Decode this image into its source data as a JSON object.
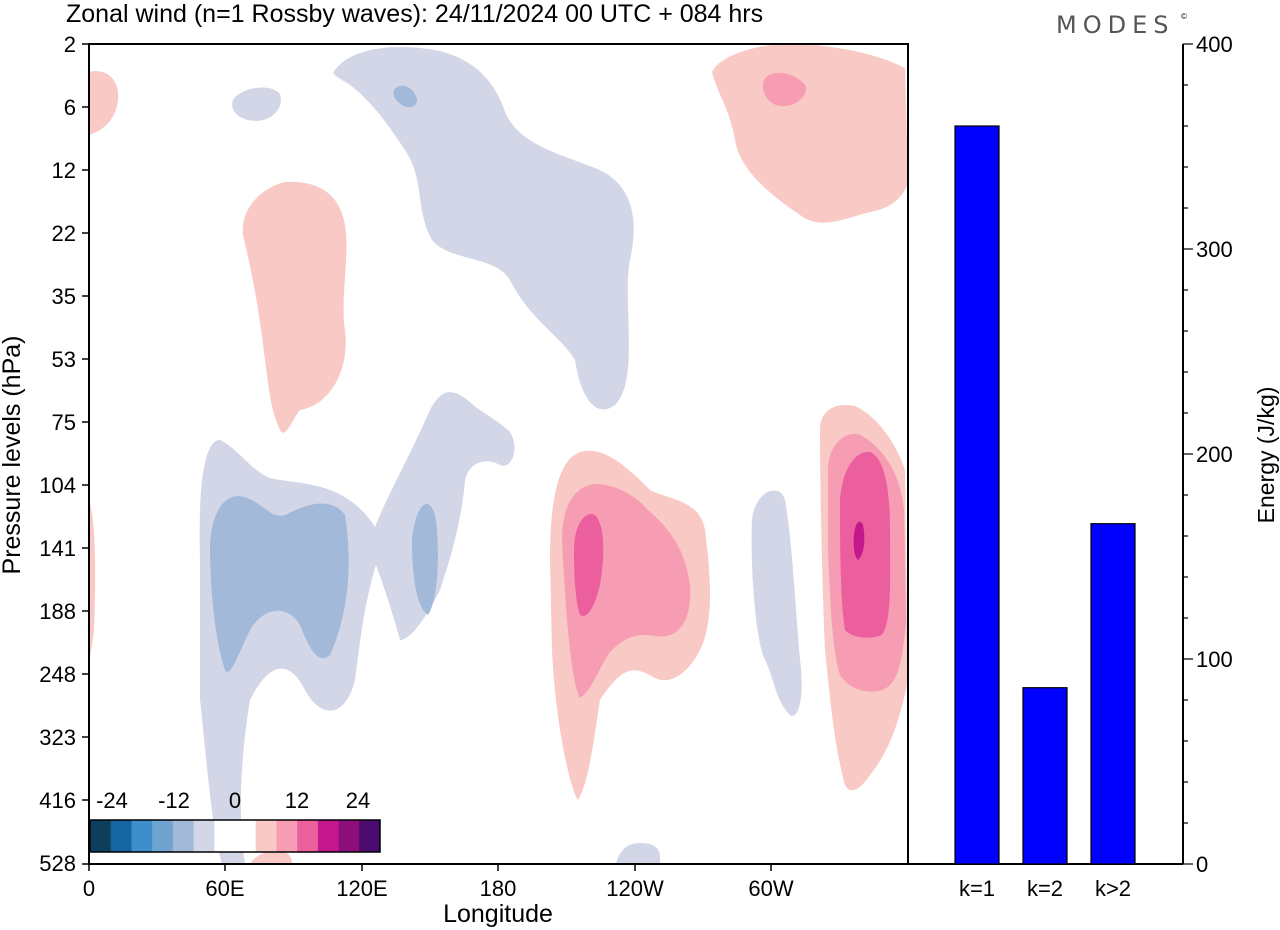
{
  "title": "Zonal wind (n=1 Rossby waves):  24/11/2024  00 UTC  + 084 hrs",
  "brand": "MODES",
  "brand_mark": "©",
  "colors": {
    "neg_4": "#0f3d5c",
    "neg_3": "#1565a3",
    "neg_2": "#3d8fc9",
    "neg_1": "#6fa4d0",
    "blue_mid": "#a3b9d9",
    "blue_light": "#d3d6e7",
    "white": "#ffffff",
    "pink_light": "#f9c9c5",
    "pink_mid": "#f79db3",
    "pink_strong": "#ec5f9e",
    "pink_deep": "#c4178b",
    "pos_4": "#8c0e7b",
    "pos_5": "#4a0a6e",
    "bar": "#0000ff"
  },
  "colorbar": {
    "labels": [
      "-24",
      "-12",
      "0",
      "12",
      "24"
    ],
    "swatches": [
      "#0f3d5c",
      "#1565a3",
      "#3d8fc9",
      "#6fa4d0",
      "#a3b9d9",
      "#d3d6e7",
      "#ffffff",
      "#ffffff",
      "#f9c9c5",
      "#f79db3",
      "#ec5f9e",
      "#c4178b",
      "#8c0e7b",
      "#4a0a6e"
    ]
  },
  "chart_data": [
    {
      "type": "heatmap",
      "title": "Zonal wind (n=1 Rossby waves):  24/11/2024  00 UTC  + 084 hrs",
      "xlabel": "Longitude",
      "ylabel": "Pressure levels (hPa)",
      "x_ticks": [
        "0",
        "60E",
        "120E",
        "180",
        "120W",
        "60W"
      ],
      "y_ticks": [
        "2",
        "6",
        "12",
        "22",
        "35",
        "53",
        "75",
        "104",
        "141",
        "188",
        "248",
        "323",
        "416",
        "528"
      ],
      "colorbar_labels": [
        "-24",
        "-12",
        "0",
        "12",
        "24"
      ],
      "legend_position": "bottom-left"
    },
    {
      "type": "bar",
      "categories": [
        "k=1",
        "k=2",
        "k>2"
      ],
      "values": [
        360,
        86,
        166
      ],
      "ylabel": "Energy (J/kg)",
      "ylim": [
        0,
        400
      ],
      "y_ticks": [
        "0",
        "100",
        "200",
        "300",
        "400"
      ],
      "axis_side": "right"
    }
  ]
}
